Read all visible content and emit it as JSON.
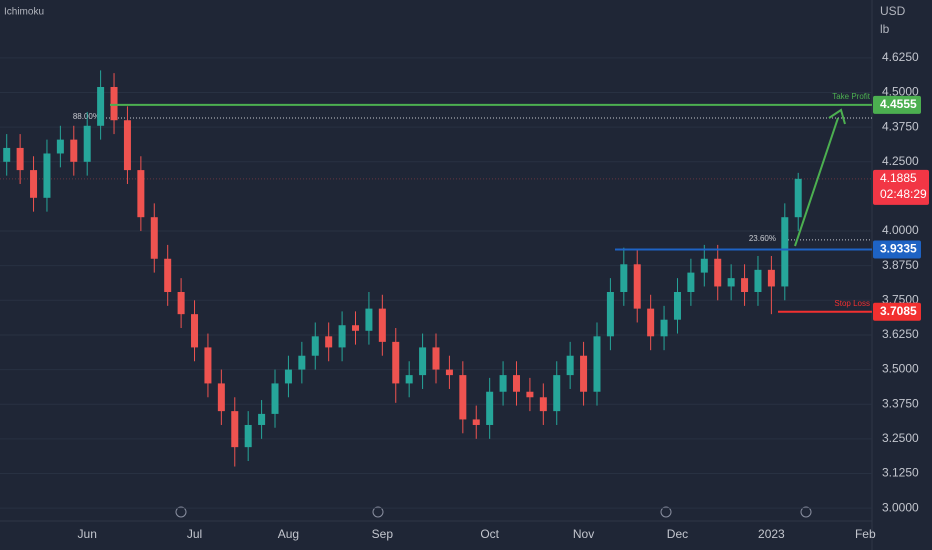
{
  "chart_data": {
    "type": "candlestick",
    "indicator": "Ichimoku",
    "currency": "USD",
    "unit": "lb",
    "categories": [
      null,
      null,
      null,
      null,
      null,
      null,
      "Jun",
      null,
      null,
      null,
      null,
      null,
      null,
      null,
      "Jul",
      null,
      null,
      null,
      null,
      null,
      null,
      "Aug",
      null,
      null,
      null,
      null,
      null,
      null,
      "Sep",
      null,
      null,
      null,
      null,
      null,
      null,
      null,
      "Oct",
      null,
      null,
      null,
      null,
      null,
      null,
      "Nov",
      null,
      null,
      null,
      null,
      null,
      null,
      "Dec",
      null,
      null,
      null,
      null,
      null,
      null,
      "2023",
      null,
      null,
      null,
      null,
      null,
      null,
      "Feb"
    ],
    "open": [
      4.25,
      4.3,
      4.22,
      4.12,
      4.28,
      4.33,
      4.25,
      4.38,
      4.52,
      4.4,
      4.22,
      4.05,
      3.9,
      3.78,
      3.7,
      3.58,
      3.45,
      3.35,
      3.22,
      3.3,
      3.34,
      3.45,
      3.5,
      3.55,
      3.62,
      3.58,
      3.66,
      3.64,
      3.72,
      3.6,
      3.45,
      3.48,
      3.58,
      3.5,
      3.48,
      3.32,
      3.3,
      3.42,
      3.48,
      3.42,
      3.4,
      3.35,
      3.48,
      3.55,
      3.42,
      3.62,
      3.78,
      3.88,
      3.72,
      3.62,
      3.68,
      3.78,
      3.85,
      3.9,
      3.8,
      3.83,
      3.78,
      3.86,
      3.8,
      4.05,
      null,
      null,
      null,
      null,
      null
    ],
    "high": [
      4.35,
      4.35,
      4.27,
      4.33,
      4.38,
      4.38,
      4.43,
      4.58,
      4.57,
      4.45,
      4.27,
      4.1,
      3.95,
      3.83,
      3.75,
      3.63,
      3.5,
      3.4,
      3.35,
      3.39,
      3.5,
      3.55,
      3.6,
      3.67,
      3.67,
      3.71,
      3.71,
      3.78,
      3.77,
      3.65,
      3.53,
      3.63,
      3.63,
      3.55,
      3.53,
      3.37,
      3.47,
      3.53,
      3.53,
      3.47,
      3.45,
      3.53,
      3.6,
      3.6,
      3.67,
      3.83,
      3.94,
      3.93,
      3.77,
      3.73,
      3.83,
      3.9,
      3.95,
      3.95,
      3.88,
      3.88,
      3.91,
      3.91,
      4.1,
      4.21,
      null,
      null,
      null,
      null,
      null
    ],
    "low": [
      4.2,
      4.17,
      4.07,
      4.07,
      4.23,
      4.2,
      4.2,
      4.33,
      4.35,
      4.17,
      4.0,
      3.85,
      3.73,
      3.65,
      3.53,
      3.4,
      3.3,
      3.15,
      3.17,
      3.25,
      3.29,
      3.4,
      3.45,
      3.5,
      3.53,
      3.53,
      3.59,
      3.59,
      3.55,
      3.38,
      3.4,
      3.43,
      3.45,
      3.43,
      3.27,
      3.25,
      3.25,
      3.37,
      3.37,
      3.35,
      3.3,
      3.3,
      3.43,
      3.37,
      3.37,
      3.57,
      3.73,
      3.67,
      3.57,
      3.57,
      3.63,
      3.73,
      3.8,
      3.75,
      3.75,
      3.73,
      3.73,
      3.7,
      3.75,
      4.0,
      null,
      null,
      null,
      null,
      null
    ],
    "close": [
      4.3,
      4.22,
      4.12,
      4.28,
      4.33,
      4.25,
      4.38,
      4.52,
      4.4,
      4.22,
      4.05,
      3.9,
      3.78,
      3.7,
      3.58,
      3.45,
      3.35,
      3.22,
      3.3,
      3.34,
      3.45,
      3.5,
      3.55,
      3.62,
      3.58,
      3.66,
      3.64,
      3.72,
      3.6,
      3.45,
      3.48,
      3.58,
      3.5,
      3.48,
      3.32,
      3.3,
      3.42,
      3.48,
      3.42,
      3.4,
      3.35,
      3.48,
      3.55,
      3.42,
      3.62,
      3.78,
      3.88,
      3.72,
      3.62,
      3.68,
      3.78,
      3.85,
      3.9,
      3.8,
      3.83,
      3.78,
      3.86,
      3.8,
      4.05,
      4.1885,
      null,
      null,
      null,
      null,
      null
    ],
    "countdown": "02:48:29",
    "up_color": "#26a69a",
    "down_color": "#ef5350",
    "ylim": [
      2.957,
      4.834
    ],
    "yticks": [
      {
        "value": 4.625,
        "label": "4.6250"
      },
      {
        "value": 4.5,
        "label": "4.5000"
      },
      {
        "value": 4.375,
        "label": "4.3750"
      },
      {
        "value": 4.25,
        "label": "4.2500"
      },
      {
        "value": 4,
        "label": "4.0000"
      },
      {
        "value": 3.875,
        "label": "3.8750"
      },
      {
        "value": 3.75,
        "label": "3.7500"
      },
      {
        "value": 3.625,
        "label": "3.6250"
      },
      {
        "value": 3.5,
        "label": "3.5000"
      },
      {
        "value": 3.375,
        "label": "3.3750"
      },
      {
        "value": 3.25,
        "label": "3.2500"
      },
      {
        "value": 3.125,
        "label": "3.1250"
      },
      {
        "value": 3,
        "label": "3.0000"
      }
    ],
    "grid": true,
    "levels": [
      {
        "name": "Take Profit",
        "value": 4.4555,
        "color": "#4caf50"
      },
      {
        "value": 3.9335,
        "color": "#1e63c4"
      },
      {
        "name": "Stop Loss",
        "value": 3.7085,
        "color": "#f23030"
      }
    ],
    "fibs": [
      {
        "label": "88.00%",
        "value": 4.408
      },
      {
        "label": "23.60%",
        "value": 3.968
      }
    ]
  }
}
